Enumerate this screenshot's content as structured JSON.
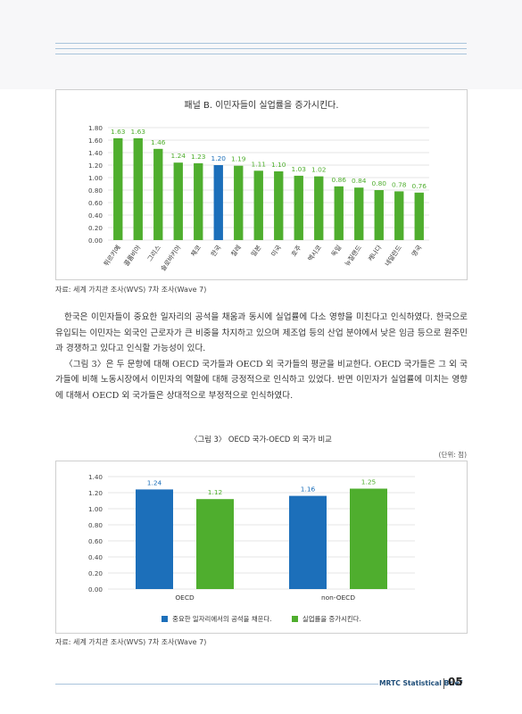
{
  "panel_title": "패널 B. 이민자들이 실업률을 증가시킨다.",
  "source_text": "자료: 세계 가치관 조사(WVS) 7차 조사(Wave 7)",
  "paragraphs": [
    "한국은 이민자들이 중요한 일자리의 공석을 채움과 동시에 실업률에 다소 영향을 미친다고 인식하였다. 한국으로 유입되는 이민자는 외국인 근로자가 큰 비중을 차지하고 있으며 제조업 등의 산업 분야에서 낮은 임금 등으로 원주민과 경쟁하고 있다고 인식할 가능성이 있다.",
    "〈그림 3〉은 두 문항에 대해 OECD 국가들과 OECD 외 국가들의 평균을 비교한다. OECD 국가들은 그 외 국가들에 비해 노동시장에서 이민자의 역할에 대해 긍정적으로 인식하고 있었다. 반면 이민자가 실업률에 미치는 영향에 대해서 OECD 외 국가들은 상대적으로 부정적으로 인식하였다."
  ],
  "figure3_title": "〈그림 3〉 OECD 국가-OECD 외 국가 비교",
  "unit_text": "(단위: 점)",
  "footer": {
    "brand": "MRTC Statistical Brief",
    "page": "05"
  },
  "chart_data": [
    {
      "type": "bar",
      "title": "패널 B. 이민자들이 실업률을 증가시킨다.",
      "categories": [
        "튀르키예",
        "콜롬비아",
        "그리스",
        "슬로바키아",
        "체코",
        "한국",
        "칠레",
        "일본",
        "미국",
        "호주",
        "멕시코",
        "독일",
        "뉴질랜드",
        "캐나다",
        "네덜란드",
        "영국"
      ],
      "values": [
        1.63,
        1.63,
        1.46,
        1.24,
        1.23,
        1.2,
        1.19,
        1.11,
        1.1,
        1.03,
        1.02,
        0.86,
        0.84,
        0.8,
        0.78,
        0.76
      ],
      "value_labels": [
        "1.63",
        "1.63",
        "1.46",
        "1.24",
        "1.23",
        "1.20",
        "1.19",
        "1.11",
        "1.10",
        "1.03",
        "1.02",
        "0.86",
        "0.84",
        "0.80",
        "0.78",
        "0.76"
      ],
      "highlight_category": "한국",
      "y_ticks": [
        "0.00",
        "0.20",
        "0.40",
        "0.60",
        "0.80",
        "1.00",
        "1.20",
        "1.40",
        "1.60",
        "1.80"
      ],
      "ylim": [
        0,
        1.8
      ],
      "grid": true,
      "colors": {
        "bar": "#4fae2e",
        "highlight": "#1c6fba",
        "label": "#4fae2e",
        "highlight_label": "#1c6fba"
      }
    },
    {
      "type": "bar",
      "title": "",
      "categories": [
        "OECD",
        "non-OECD"
      ],
      "series": [
        {
          "name": "중요한 일자리에서의 공석을 채운다.",
          "values": [
            1.24,
            1.16
          ],
          "labels": [
            "1.24",
            "1.16"
          ],
          "color": "#1c6fba"
        },
        {
          "name": "실업률을 증가시킨다.",
          "values": [
            1.12,
            1.25
          ],
          "labels": [
            "1.12",
            "1.25"
          ],
          "color": "#4fae2e"
        }
      ],
      "y_ticks": [
        "0.00",
        "0.20",
        "0.40",
        "0.60",
        "0.80",
        "1.00",
        "1.20",
        "1.40"
      ],
      "ylim": [
        0,
        1.4
      ],
      "grid": true,
      "legend_position": "bottom"
    }
  ]
}
